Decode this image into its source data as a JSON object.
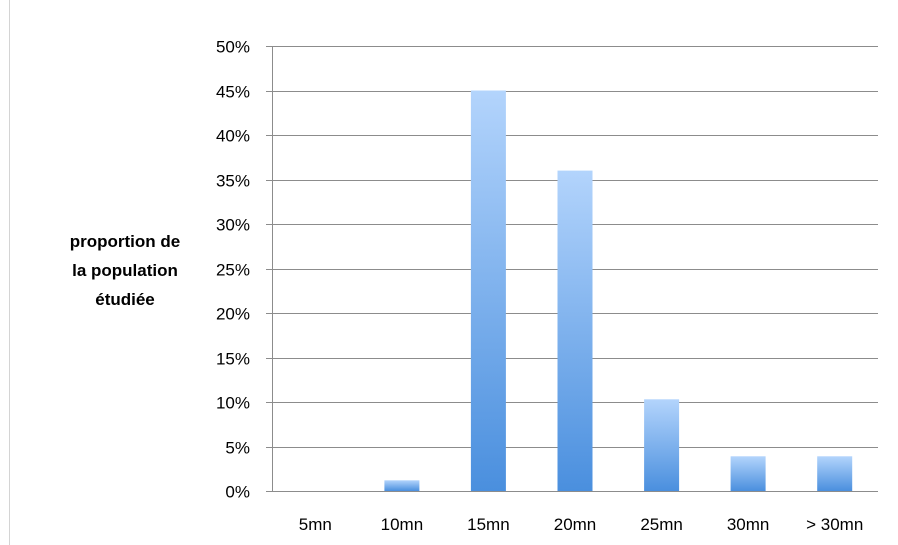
{
  "chart_data": {
    "type": "bar",
    "title": "",
    "xlabel": "",
    "ylabel_lines": [
      "proportion de",
      "la population",
      "étudiée"
    ],
    "categories": [
      "5mn",
      "10mn",
      "15mn",
      "20mn",
      "25mn",
      "30mn",
      "> 30mn"
    ],
    "values": [
      0,
      1.2,
      45,
      36,
      10.3,
      3.9,
      3.9
    ],
    "y_ticks": [
      "0%",
      "5%",
      "10%",
      "15%",
      "20%",
      "25%",
      "30%",
      "35%",
      "40%",
      "45%",
      "50%"
    ],
    "ylim": [
      0,
      50
    ],
    "grid": true,
    "legend": "none",
    "colors": {
      "bar_top": "#b3d4fc",
      "bar_bottom": "#4a8fde",
      "grid": "#8c8c8c",
      "axis": "#8c8c8c"
    }
  }
}
